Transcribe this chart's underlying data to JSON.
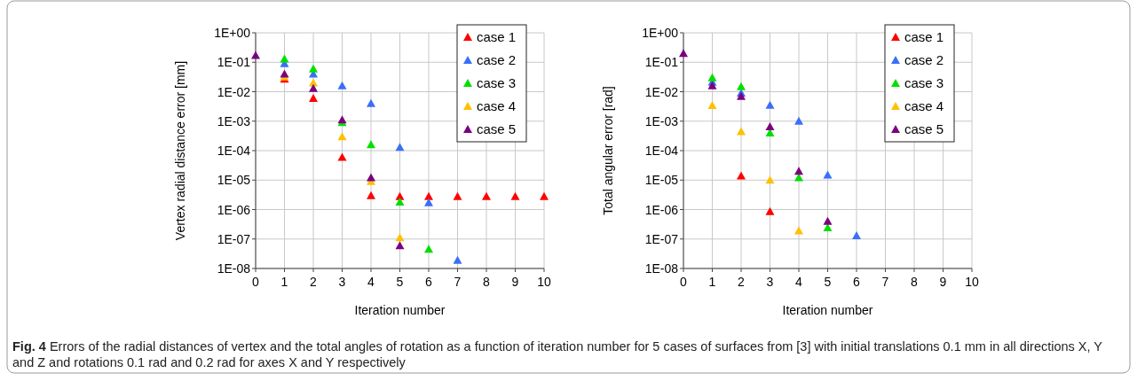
{
  "chart_data": [
    {
      "type": "scatter",
      "xlabel": "Iteration number",
      "ylabel": "Vertex radial distance error [mm]",
      "log": "y",
      "grid": true,
      "legend": "top right",
      "marker": "triangle",
      "xlim": [
        0,
        10
      ],
      "xticks": [
        0,
        1,
        2,
        3,
        4,
        5,
        6,
        7,
        8,
        9,
        10
      ],
      "ylim": [
        1e-08,
        1
      ],
      "yticks": [
        {
          "value": 1e-08,
          "label": "1E-08"
        },
        {
          "value": 1e-07,
          "label": "1E-07"
        },
        {
          "value": 1e-06,
          "label": "1E-06"
        },
        {
          "value": 1e-05,
          "label": "1E-05"
        },
        {
          "value": 0.0001,
          "label": "1E-04"
        },
        {
          "value": 0.001,
          "label": "1E-03"
        },
        {
          "value": 0.01,
          "label": "1E-02"
        },
        {
          "value": 0.1,
          "label": "1E-01"
        },
        {
          "value": 1,
          "label": "1E+00"
        }
      ],
      "series": [
        {
          "name": "case 1",
          "color": "#ff0000",
          "x": [
            1,
            2,
            3,
            4,
            5,
            6,
            7,
            8,
            9,
            10
          ],
          "values": [
            0.027,
            0.006,
            6e-05,
            3e-06,
            2.8e-06,
            2.8e-06,
            2.8e-06,
            2.8e-06,
            2.8e-06,
            2.8e-06
          ]
        },
        {
          "name": "case 2",
          "color": "#3a6ff7",
          "x": [
            1,
            2,
            3,
            4,
            5,
            6,
            7
          ],
          "values": [
            0.09,
            0.04,
            0.016,
            0.004,
            0.00013,
            1.7e-06,
            1.9e-08
          ]
        },
        {
          "name": "case 3",
          "color": "#00e000",
          "x": [
            1,
            2,
            3,
            4,
            5,
            6
          ],
          "values": [
            0.13,
            0.06,
            0.0009,
            0.00016,
            1.8e-06,
            4.5e-08
          ]
        },
        {
          "name": "case 4",
          "color": "#ffc000",
          "x": [
            1,
            2,
            3,
            4,
            5
          ],
          "values": [
            0.032,
            0.02,
            0.0003,
            9e-06,
            1.1e-07
          ]
        },
        {
          "name": "case 5",
          "color": "#7b0080",
          "x": [
            0,
            1,
            2,
            3,
            4,
            5
          ],
          "values": [
            0.17,
            0.04,
            0.013,
            0.0011,
            1.2e-05,
            6e-08
          ]
        }
      ],
      "annotations": [
        "Fig. 4 Errors of the radial distances of vertex and the total angles of rotation as a function of iteration number for 5 cases of surfaces from [3] with initial translations 0.1 mm in all directions X, Y and Z and rotations 0.1 rad and 0.2 rad for axes X and Y respectively"
      ]
    },
    {
      "type": "scatter",
      "xlabel": "Iteration number",
      "ylabel": "Total angular error [rad]",
      "log": "y",
      "grid": true,
      "legend": "top right",
      "marker": "triangle",
      "xlim": [
        0,
        10
      ],
      "xticks": [
        0,
        1,
        2,
        3,
        4,
        5,
        6,
        7,
        8,
        9,
        10
      ],
      "ylim": [
        1e-08,
        1
      ],
      "yticks": [
        {
          "value": 1e-08,
          "label": "1E-08"
        },
        {
          "value": 1e-07,
          "label": "1E-07"
        },
        {
          "value": 1e-06,
          "label": "1E-06"
        },
        {
          "value": 1e-05,
          "label": "1E-05"
        },
        {
          "value": 0.0001,
          "label": "1E-04"
        },
        {
          "value": 0.001,
          "label": "1E-03"
        },
        {
          "value": 0.01,
          "label": "1E-02"
        },
        {
          "value": 0.1,
          "label": "1E-01"
        },
        {
          "value": 1,
          "label": "1E+00"
        }
      ],
      "series": [
        {
          "name": "case 1",
          "color": "#ff0000",
          "x": [
            2,
            3
          ],
          "values": [
            1.4e-05,
            8.5e-07
          ]
        },
        {
          "name": "case 2",
          "color": "#3a6ff7",
          "x": [
            1,
            2,
            3,
            4,
            5,
            6
          ],
          "values": [
            0.021,
            0.009,
            0.0035,
            0.001,
            1.5e-05,
            1.3e-07
          ]
        },
        {
          "name": "case 3",
          "color": "#00e000",
          "x": [
            1,
            2,
            3,
            4,
            5
          ],
          "values": [
            0.03,
            0.015,
            0.0004,
            1.2e-05,
            2.4e-07
          ]
        },
        {
          "name": "case 4",
          "color": "#ffc000",
          "x": [
            1,
            2,
            3,
            4
          ],
          "values": [
            0.0034,
            0.00044,
            1e-05,
            1.9e-07
          ]
        },
        {
          "name": "case 5",
          "color": "#7b0080",
          "x": [
            0,
            1,
            2,
            3,
            4,
            5
          ],
          "values": [
            0.2,
            0.016,
            0.007,
            0.00065,
            2e-05,
            4e-07
          ]
        }
      ]
    }
  ]
}
